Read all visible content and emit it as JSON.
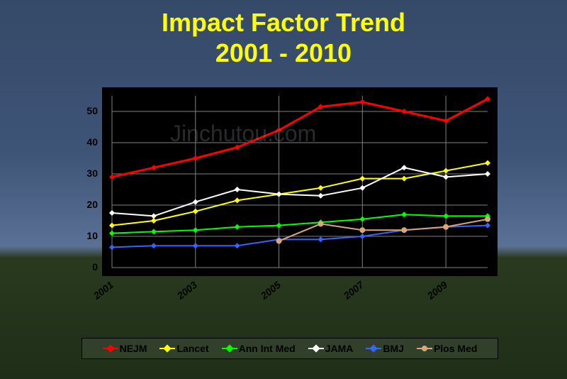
{
  "title_line1": "Impact Factor Trend",
  "title_line2": "2001 - 2010",
  "watermark": "Jinchutou.com",
  "chart": {
    "type": "line",
    "background_color": "#000000",
    "ylim": [
      0,
      55
    ],
    "ytick_step": 10,
    "yticks": [
      0,
      10,
      20,
      30,
      40,
      50
    ],
    "xlabels": [
      "2001",
      "2003",
      "2005",
      "2007",
      "2009"
    ],
    "x_count": 10,
    "grid_color": "#808080",
    "tick_color": "#000000",
    "label_fontsize": 14,
    "label_fontweight": "bold",
    "series": [
      {
        "name": "NEJM",
        "color": "#ff0000",
        "marker": "diamond",
        "line_width": 3,
        "values": [
          29,
          32,
          35,
          38.5,
          44,
          51.5,
          53,
          50,
          47,
          54
        ]
      },
      {
        "name": "Lancet",
        "color": "#ffff00",
        "marker": "diamond",
        "line_width": 2,
        "values": [
          13.5,
          15,
          18,
          21.5,
          23.5,
          25.5,
          28.5,
          28.5,
          31,
          33.5
        ]
      },
      {
        "name": "Ann Int Med",
        "color": "#00ff00",
        "marker": "diamond",
        "line_width": 2,
        "values": [
          11,
          11.5,
          12,
          13,
          13.5,
          14.5,
          15.5,
          17,
          16.5,
          16.5
        ]
      },
      {
        "name": "JAMA",
        "color": "#ffffff",
        "marker": "diamond",
        "line_width": 2,
        "values": [
          17.5,
          16.5,
          21,
          25,
          23.5,
          23,
          25.5,
          32,
          29,
          30
        ]
      },
      {
        "name": "BMJ",
        "color": "#3366ff",
        "marker": "diamond",
        "line_width": 2,
        "values": [
          6.5,
          7,
          7,
          7,
          9,
          9,
          10,
          12,
          13,
          13.5
        ]
      },
      {
        "name": "Plos Med",
        "color": "#d9a77a",
        "marker": "circle",
        "line_width": 2,
        "values": [
          null,
          null,
          null,
          null,
          8.5,
          14,
          12,
          12,
          13,
          15.5
        ]
      }
    ]
  }
}
